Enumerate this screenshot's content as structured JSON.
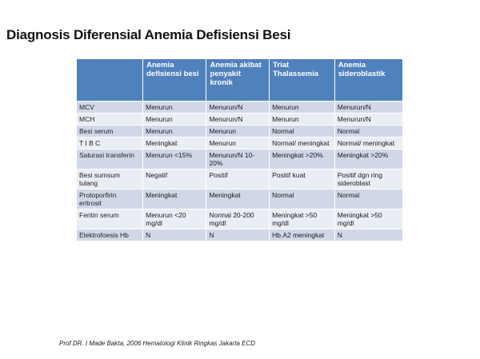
{
  "title": "Diagnosis Diferensial Anemia Defisiensi Besi",
  "table": {
    "headers": [
      "",
      "Anemia defisiensi besi",
      "Anemia akibat penyakit kronik",
      "Triat Thalassemia",
      "Anemia sideroblastik"
    ],
    "rows": [
      [
        "MCV",
        "Menurun",
        "Menurun/N",
        "Menurun",
        "Menurun/N"
      ],
      [
        "MCH",
        "Menurun",
        "Menurun/N",
        "Menurun",
        "Menurun/N"
      ],
      [
        "Besi serum",
        "Menurun",
        "Menurun",
        "Normal",
        "Normal"
      ],
      [
        "T I B C",
        "Meningkat",
        "Menurun",
        "Normal/ meningkat",
        "Normal/ meningkat"
      ],
      [
        "Saturasi transferin",
        "Menurun <15%",
        "Menurun/N 10-20%",
        "Meningkat >20%",
        "Meningkat >20%"
      ],
      [
        "Besi sumsum tulang",
        "Negatif",
        "Positif",
        "Positif kuat",
        "Positif dgn ring sideroblast"
      ],
      [
        "Protoporfirin eritrosit",
        "Meningkat",
        "Meningkat",
        "Normal",
        "Normal"
      ],
      [
        "Feritin serum",
        "Menurun <20 mg/dl",
        "Normal 20-200 mg/dl",
        "Meningkat >50 mg/dl",
        "Meningkat >50 mg/dl"
      ],
      [
        "Elektrofoesis Hb",
        "N",
        "N",
        "Hb.A2 meningkat",
        "N"
      ]
    ]
  },
  "footer": "Prof DR. I Made Bakta, 2006  Hematologi Klinik Ringkas Jakarta ECD"
}
